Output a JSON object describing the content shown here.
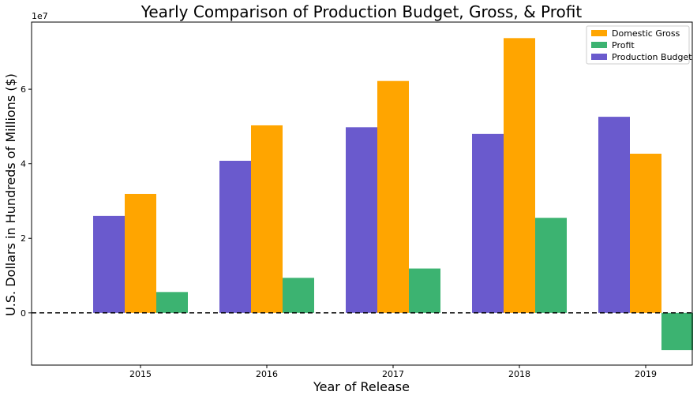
{
  "chart_data": {
    "type": "bar",
    "title": "Yearly Comparison of Production Budget, Gross, & Profit",
    "xlabel": "Year of Release",
    "ylabel": "U.S. Dollars in Hundreds of Millions ($)",
    "y_offset_label": "1e7",
    "categories": [
      "2015",
      "2016",
      "2017",
      "2018",
      "2019"
    ],
    "series": [
      {
        "name": "Production Budget",
        "color": "#6a5acd",
        "values": [
          26000000,
          40800000,
          49800000,
          48000000,
          52600000
        ]
      },
      {
        "name": "Domestic Gross",
        "color": "#ffa500",
        "values": [
          31900000,
          50300000,
          62200000,
          73700000,
          42700000
        ]
      },
      {
        "name": "Profit",
        "color": "#3cb371",
        "values": [
          5600000,
          9400000,
          11900000,
          25500000,
          -10000000
        ]
      }
    ],
    "legend_order": [
      "Domestic Gross",
      "Profit",
      "Production Budget"
    ],
    "ylim": [
      -14000000,
      78000000
    ],
    "yticks": [
      0,
      20000000,
      40000000,
      60000000
    ],
    "ytick_labels": [
      "0",
      "2",
      "4",
      "6"
    ],
    "zero_line": "dashed black",
    "grid": false,
    "legend_position": "top-right"
  }
}
